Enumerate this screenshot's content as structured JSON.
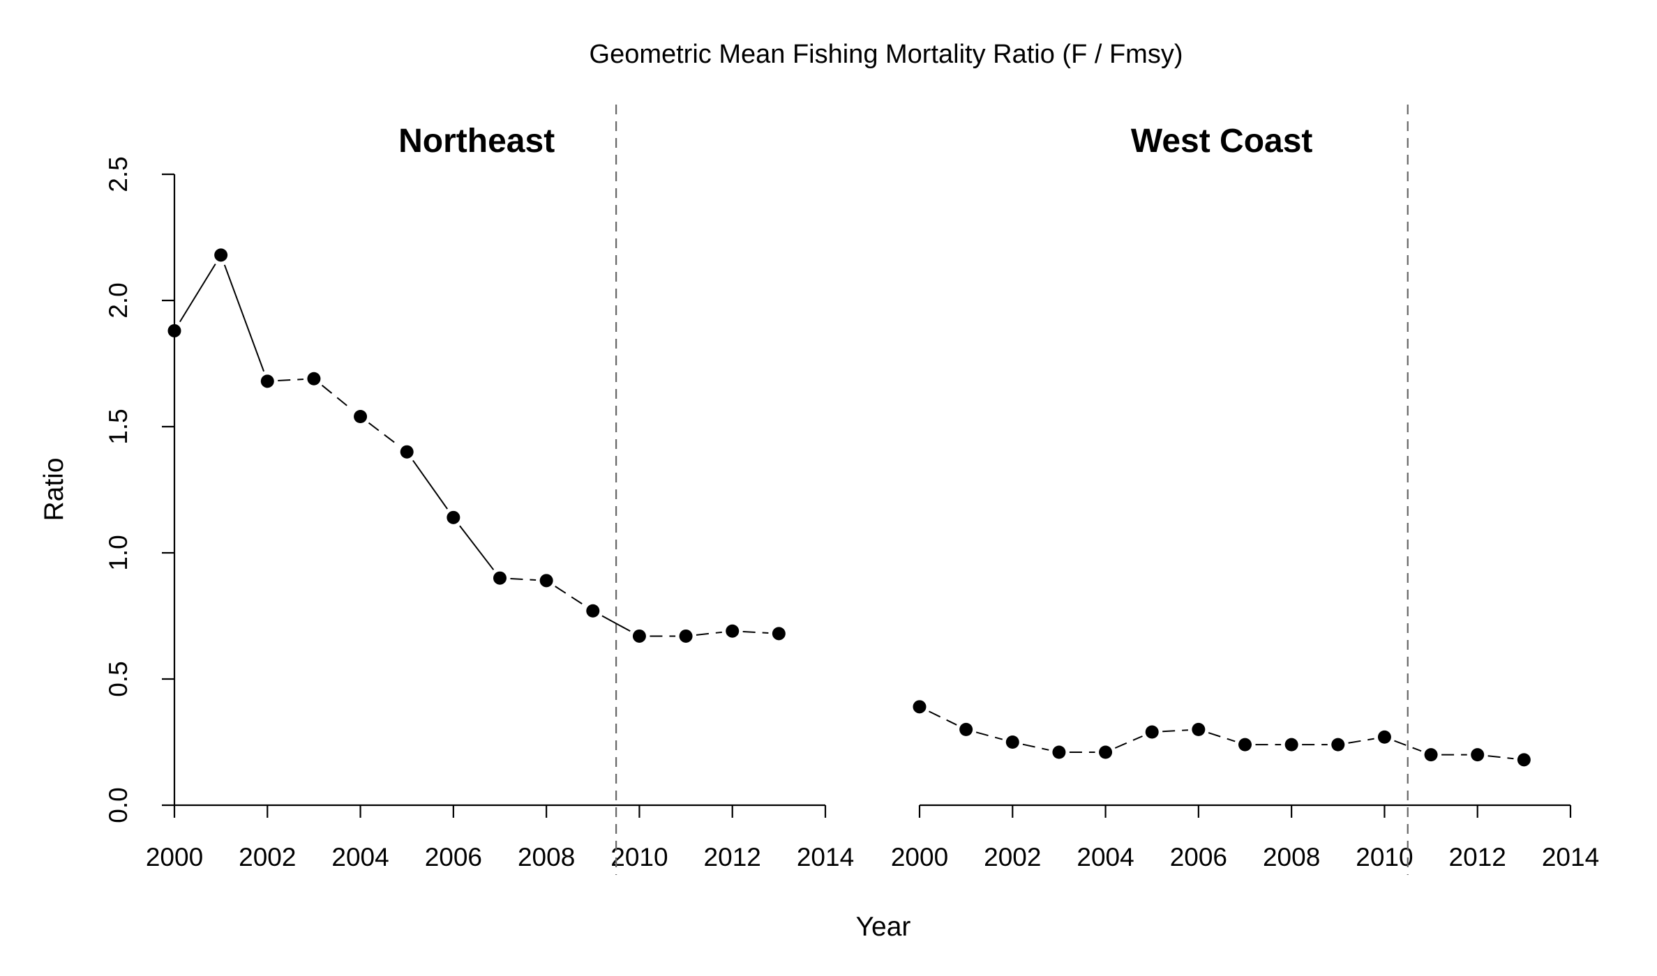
{
  "chart_data": {
    "type": "line",
    "title": "Geometric Mean Fishing Mortality Ratio (F / Fmsy)",
    "xlabel": "Year",
    "ylabel": "Ratio",
    "ylim": [
      0,
      2.5
    ],
    "yticks": [
      "0.0",
      "0.5",
      "1.0",
      "1.5",
      "2.0",
      "2.5"
    ],
    "xlim": [
      2000,
      2014
    ],
    "xticks": [
      "2000",
      "2002",
      "2004",
      "2006",
      "2008",
      "2010",
      "2012",
      "2014"
    ],
    "grid": false,
    "marker_color": "#000000",
    "reference_line_color": "#666666",
    "panels": [
      {
        "title": "Northeast",
        "reference_year": 2009.5,
        "series": [
          {
            "x": [
              2000,
              2001,
              2002,
              2003,
              2004,
              2005,
              2006,
              2007,
              2008,
              2009,
              2010,
              2011,
              2012,
              2013
            ],
            "values": [
              1.88,
              2.18,
              1.68,
              1.69,
              1.54,
              1.4,
              1.14,
              0.9,
              0.89,
              0.77,
              0.67,
              0.67,
              0.69,
              0.68
            ]
          }
        ],
        "segment_styles": [
          "solid",
          "solid",
          "dashed",
          "dashed",
          "dashed",
          "solid",
          "solid",
          "dashed",
          "dashed",
          "solid",
          "dashed",
          "dashed",
          "dashed"
        ]
      },
      {
        "title": "West Coast",
        "reference_year": 2010.5,
        "series": [
          {
            "x": [
              2000,
              2001,
              2002,
              2003,
              2004,
              2005,
              2006,
              2007,
              2008,
              2009,
              2010,
              2011,
              2012,
              2013
            ],
            "values": [
              0.39,
              0.3,
              0.25,
              0.21,
              0.21,
              0.29,
              0.3,
              0.24,
              0.24,
              0.24,
              0.27,
              0.2,
              0.2,
              0.18
            ]
          }
        ],
        "segment_styles": [
          "dashed",
          "dashed",
          "dashed",
          "dashed",
          "dashed",
          "dashed",
          "dashed",
          "dashed",
          "dashed",
          "dashed",
          "dashed",
          "dashed",
          "dashed"
        ]
      }
    ]
  }
}
